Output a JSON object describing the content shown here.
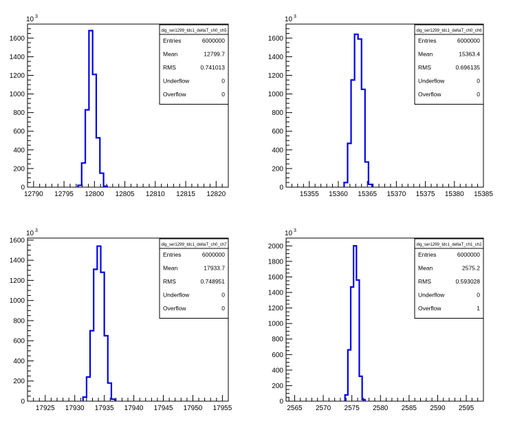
{
  "exponent_label": "10",
  "exponent_power": "3",
  "chart_data": [
    {
      "type": "bar",
      "title": "dig_ser1299_tdc1_deltaT_ch0_ch5",
      "xlim": [
        12789,
        12822
      ],
      "ylim": [
        0,
        1750
      ],
      "yscale_label": "×10^3",
      "xticks": [
        12790,
        12795,
        12800,
        12805,
        12810,
        12815,
        12820
      ],
      "yticks": [
        0,
        200,
        400,
        600,
        800,
        1000,
        1200,
        1400,
        1600
      ],
      "bins": [
        {
          "x0": 12797.3,
          "x1": 12797.9,
          "y": 20
        },
        {
          "x0": 12797.9,
          "x1": 12798.5,
          "y": 260
        },
        {
          "x0": 12798.5,
          "x1": 12799.1,
          "y": 830
        },
        {
          "x0": 12799.1,
          "x1": 12799.7,
          "y": 1680
        },
        {
          "x0": 12799.7,
          "x1": 12800.3,
          "y": 1210
        },
        {
          "x0": 12800.3,
          "x1": 12800.9,
          "y": 530
        },
        {
          "x0": 12800.9,
          "x1": 12801.5,
          "y": 150
        },
        {
          "x0": 12801.5,
          "x1": 12802.1,
          "y": 10
        }
      ],
      "stats": {
        "Entries": "6000000",
        "Mean": "12799.7",
        "RMS": "0.741013",
        "Underflow": "0",
        "Overflow": "0"
      }
    },
    {
      "type": "bar",
      "title": "dig_ser1299_tdc1_deltaT_ch0_ch6",
      "xlim": [
        15351,
        15385
      ],
      "ylim": [
        0,
        1750
      ],
      "yscale_label": "×10^3",
      "xticks": [
        15355,
        15360,
        15365,
        15370,
        15375,
        15380,
        15385
      ],
      "yticks": [
        0,
        200,
        400,
        600,
        800,
        1000,
        1200,
        1400,
        1600
      ],
      "bins": [
        {
          "x0": 15361.0,
          "x1": 15361.6,
          "y": 50
        },
        {
          "x0": 15361.6,
          "x1": 15362.2,
          "y": 470
        },
        {
          "x0": 15362.2,
          "x1": 15362.8,
          "y": 1150
        },
        {
          "x0": 15362.8,
          "x1": 15363.4,
          "y": 1640
        },
        {
          "x0": 15363.4,
          "x1": 15364.0,
          "y": 1590
        },
        {
          "x0": 15364.0,
          "x1": 15364.6,
          "y": 1050
        },
        {
          "x0": 15364.6,
          "x1": 15365.2,
          "y": 270
        },
        {
          "x0": 15365.2,
          "x1": 15365.8,
          "y": 30
        }
      ],
      "stats": {
        "Entries": "6000000",
        "Mean": "15363.4",
        "RMS": "0.696135",
        "Underflow": "0",
        "Overflow": "0"
      }
    },
    {
      "type": "bar",
      "title": "dig_ser1299_tdc1_deltaT_ch0_ch7",
      "xlim": [
        17922,
        17956
      ],
      "ylim": [
        0,
        1620
      ],
      "yscale_label": "×10^3",
      "xticks": [
        17925,
        17930,
        17935,
        17940,
        17945,
        17950,
        17955
      ],
      "yticks": [
        0,
        200,
        400,
        600,
        800,
        1000,
        1200,
        1400,
        1600
      ],
      "bins": [
        {
          "x0": 17931.4,
          "x1": 17932.0,
          "y": 40
        },
        {
          "x0": 17932.0,
          "x1": 17932.6,
          "y": 240
        },
        {
          "x0": 17932.6,
          "x1": 17933.2,
          "y": 700
        },
        {
          "x0": 17933.2,
          "x1": 17933.8,
          "y": 1310
        },
        {
          "x0": 17933.8,
          "x1": 17934.4,
          "y": 1540
        },
        {
          "x0": 17934.4,
          "x1": 17935.0,
          "y": 1280
        },
        {
          "x0": 17935.0,
          "x1": 17935.6,
          "y": 650
        },
        {
          "x0": 17935.6,
          "x1": 17936.2,
          "y": 180
        },
        {
          "x0": 17936.2,
          "x1": 17936.8,
          "y": 20
        }
      ],
      "stats": {
        "Entries": "6000000",
        "Mean": "17933.7",
        "RMS": "0.748951",
        "Underflow": "0",
        "Overflow": "0"
      }
    },
    {
      "type": "bar",
      "title": "dig_ser1299_tdc1_deltaT_ch1_ch2",
      "xlim": [
        2563.5,
        2598
      ],
      "ylim": [
        0,
        2100
      ],
      "yscale_label": "×10^3",
      "xticks": [
        2565,
        2570,
        2575,
        2580,
        2585,
        2590,
        2595
      ],
      "yticks": [
        0,
        200,
        400,
        600,
        800,
        1000,
        1200,
        1400,
        1600,
        1800,
        2000
      ],
      "bins": [
        {
          "x0": 2573.8,
          "x1": 2574.3,
          "y": 80
        },
        {
          "x0": 2574.3,
          "x1": 2574.8,
          "y": 660
        },
        {
          "x0": 2574.8,
          "x1": 2575.3,
          "y": 1470
        },
        {
          "x0": 2575.3,
          "x1": 2575.8,
          "y": 2000
        },
        {
          "x0": 2575.8,
          "x1": 2576.3,
          "y": 1560
        },
        {
          "x0": 2576.3,
          "x1": 2576.8,
          "y": 320
        },
        {
          "x0": 2576.8,
          "x1": 2577.3,
          "y": 20
        }
      ],
      "stats": {
        "Entries": "6000000",
        "Mean": "2575.2",
        "RMS": "0.593028",
        "Underflow": "0",
        "Overflow": "1"
      }
    }
  ]
}
